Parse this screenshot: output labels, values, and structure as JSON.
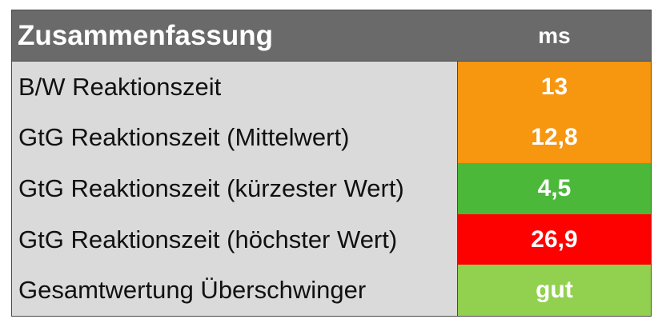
{
  "table": {
    "header": {
      "label": "Zusammenfassung",
      "unit": "ms"
    },
    "rows": [
      {
        "label": "B/W Reaktionszeit",
        "value": "13",
        "color": "#f7960f"
      },
      {
        "label": "GtG Reaktionszeit (Mittelwert)",
        "value": "12,8",
        "color": "#f7960f"
      },
      {
        "label": "GtG Reaktionszeit (kürzester Wert)",
        "value": "4,5",
        "color": "#4cb83a"
      },
      {
        "label": "GtG Reaktionszeit (höchster Wert)",
        "value": "26,9",
        "color": "#fd0000"
      },
      {
        "label": "Gesamtwertung Überschwinger",
        "value": "gut",
        "color": "#92d050"
      }
    ]
  }
}
